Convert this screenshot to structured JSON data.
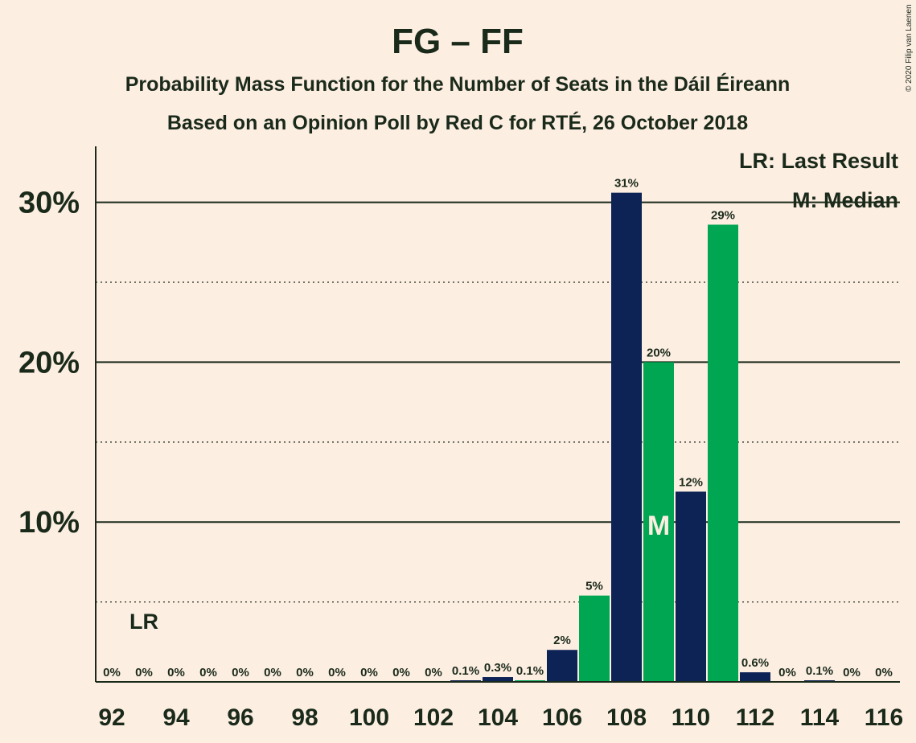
{
  "header": {
    "title": "FG – FF",
    "subtitle": "Probability Mass Function for the Number of Seats in the Dáil Éireann",
    "subtitle2": "Based on an Opinion Poll by Red C for RTÉ, 26 October 2018",
    "copyright": "© 2020 Filip van Laenen"
  },
  "legend": {
    "last_result": "LR: Last Result",
    "median": "M: Median"
  },
  "markers": {
    "lr_label": "LR",
    "lr_seat": 93,
    "median_label": "M",
    "median_seat": 109
  },
  "colors": {
    "background": "#fdeee2",
    "navy": "#0d2255",
    "green": "#00a651",
    "text": "#1a2a1a"
  },
  "chart_data": {
    "type": "bar",
    "x": [
      92,
      93,
      94,
      95,
      96,
      97,
      98,
      99,
      100,
      101,
      102,
      103,
      104,
      105,
      106,
      107,
      108,
      109,
      110,
      111,
      112,
      113,
      114,
      115,
      116
    ],
    "values": [
      0,
      0,
      0,
      0,
      0,
      0,
      0,
      0,
      0,
      0,
      0,
      0.1,
      0.3,
      0.1,
      2,
      5.4,
      30.6,
      20,
      11.9,
      28.6,
      0.6,
      0,
      0.1,
      0,
      0
    ],
    "labels": [
      "0%",
      "0%",
      "0%",
      "0%",
      "0%",
      "0%",
      "0%",
      "0%",
      "0%",
      "0%",
      "0%",
      "0.1%",
      "0.3%",
      "0.1%",
      "2%",
      "5%",
      "31%",
      "20%",
      "12%",
      "29%",
      "0.6%",
      "0%",
      "0.1%",
      "0%",
      "0%"
    ],
    "bar_colors": [
      "green",
      "navy",
      "green",
      "navy",
      "green",
      "navy",
      "green",
      "navy",
      "green",
      "navy",
      "green",
      "navy",
      "navy",
      "green",
      "navy",
      "green",
      "navy",
      "green",
      "navy",
      "green",
      "navy",
      "green",
      "navy",
      "green",
      "navy"
    ],
    "x_ticks": [
      "92",
      "94",
      "96",
      "98",
      "100",
      "102",
      "104",
      "106",
      "108",
      "110",
      "112",
      "114",
      "116"
    ],
    "y_ticks": [
      "10%",
      "20%",
      "30%"
    ],
    "y_tick_values": [
      10,
      20,
      30
    ],
    "ylim": [
      0,
      33.5
    ],
    "grid": "solid at 10% steps, dotted at 5% steps",
    "legend_position": "top-right"
  }
}
